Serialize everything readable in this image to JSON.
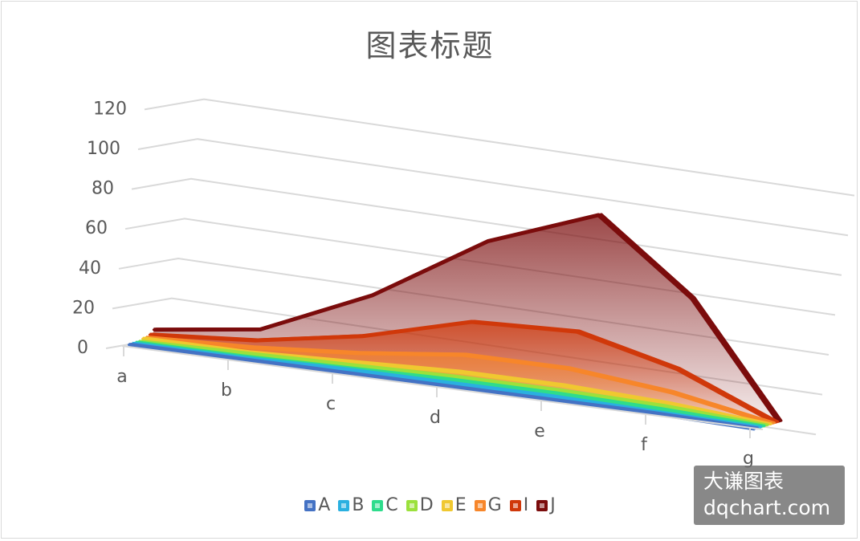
{
  "chart_data": {
    "type": "area",
    "variant": "3d-area",
    "title": "图表标题",
    "categories": [
      "a",
      "b",
      "c",
      "d",
      "e",
      "f",
      "g"
    ],
    "y_ticks": [
      "0",
      "20",
      "40",
      "60",
      "80",
      "100",
      "120"
    ],
    "ylim": [
      0,
      120
    ],
    "grid": true,
    "legend_position": "bottom",
    "series": [
      {
        "name": "A",
        "color": "#4472c4",
        "values": [
          1,
          1,
          1,
          1,
          1,
          1,
          0
        ]
      },
      {
        "name": "B",
        "color": "#2ab0e0",
        "values": [
          1,
          1,
          2,
          2,
          2,
          1,
          0
        ]
      },
      {
        "name": "C",
        "color": "#2edc8c",
        "values": [
          1,
          1,
          2,
          3,
          3,
          2,
          0
        ]
      },
      {
        "name": "D",
        "color": "#9be13c",
        "values": [
          1,
          2,
          3,
          4,
          4,
          3,
          0
        ]
      },
      {
        "name": "E",
        "color": "#f0c830",
        "values": [
          2,
          2,
          4,
          6,
          6,
          4,
          0
        ]
      },
      {
        "name": "G",
        "color": "#f7862a",
        "values": [
          2,
          4,
          8,
          14,
          14,
          9,
          0
        ]
      },
      {
        "name": "I",
        "color": "#d0380a",
        "values": [
          3,
          7,
          16,
          30,
          32,
          20,
          0
        ]
      },
      {
        "name": "J",
        "color": "#7b0c0c",
        "values": [
          5,
          12,
          36,
          70,
          90,
          55,
          0
        ]
      }
    ]
  },
  "watermark": {
    "line1": "大谦图表",
    "line2": "dqchart.com"
  }
}
